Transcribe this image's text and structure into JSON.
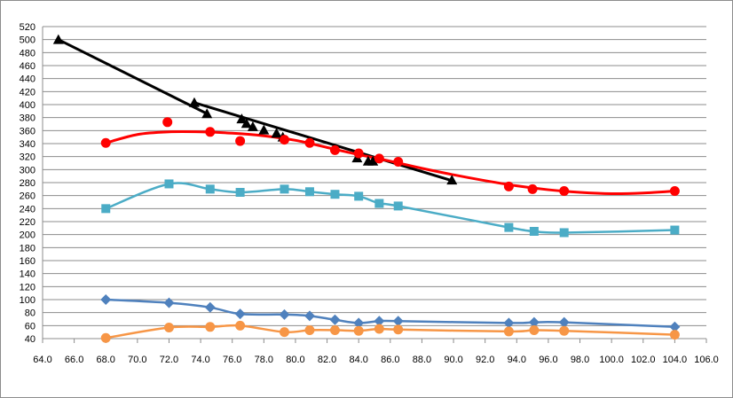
{
  "chart_data": {
    "type": "line",
    "title": "",
    "xlabel": "",
    "ylabel": "",
    "xlim": [
      64.0,
      106.0
    ],
    "ylim": [
      40,
      520
    ],
    "x_ticks": [
      "64.0",
      "66.0",
      "68.0",
      "70.0",
      "72.0",
      "74.0",
      "76.0",
      "78.0",
      "80.0",
      "82.0",
      "84.0",
      "86.0",
      "88.0",
      "90.0",
      "92.0",
      "94.0",
      "96.0",
      "98.0",
      "100.0",
      "102.0",
      "104.0",
      "106.0"
    ],
    "y_ticks": [
      "40",
      "60",
      "80",
      "100",
      "120",
      "140",
      "160",
      "180",
      "200",
      "220",
      "240",
      "260",
      "280",
      "300",
      "320",
      "340",
      "360",
      "380",
      "400",
      "420",
      "440",
      "460",
      "480",
      "500",
      "520"
    ],
    "grid": "horizontal",
    "legend": "none",
    "series": [
      {
        "color": "#000000",
        "marker": "triangle",
        "style": "points",
        "points": [
          [
            65.0,
            500
          ],
          [
            73.6,
            403
          ],
          [
            74.4,
            386
          ],
          [
            76.6,
            378
          ],
          [
            76.9,
            371
          ],
          [
            77.3,
            366
          ],
          [
            78.0,
            361
          ],
          [
            78.8,
            356
          ],
          [
            79.2,
            350
          ],
          [
            83.9,
            318
          ],
          [
            84.6,
            313
          ],
          [
            84.9,
            313
          ],
          [
            89.9,
            284
          ]
        ]
      },
      {
        "color": "#000000",
        "marker": "none",
        "style": "trend",
        "points": [
          [
            65.0,
            500
          ],
          [
            74.4,
            386
          ]
        ]
      },
      {
        "color": "#000000",
        "marker": "none",
        "style": "trend",
        "points": [
          [
            73.6,
            403
          ],
          [
            89.9,
            283
          ]
        ]
      },
      {
        "color": "#ff0000",
        "marker": "circle",
        "style": "points",
        "points": [
          [
            68.0,
            341
          ],
          [
            71.9,
            373
          ],
          [
            74.6,
            358
          ],
          [
            76.5,
            344
          ],
          [
            79.3,
            346
          ],
          [
            80.9,
            341
          ],
          [
            82.5,
            330
          ],
          [
            84.0,
            325
          ],
          [
            85.3,
            317
          ],
          [
            86.5,
            312
          ],
          [
            93.5,
            274
          ],
          [
            95.0,
            270
          ],
          [
            97.0,
            267
          ],
          [
            104.0,
            267
          ]
        ]
      },
      {
        "color": "#ff0000",
        "marker": "none",
        "style": "trend",
        "points": [
          [
            68.0,
            341
          ],
          [
            70.0,
            354
          ],
          [
            72.0,
            358
          ],
          [
            74.0,
            358
          ],
          [
            76.0,
            356
          ],
          [
            78.0,
            352
          ],
          [
            80.0,
            345
          ],
          [
            82.0,
            334
          ],
          [
            84.0,
            323
          ],
          [
            86.0,
            313
          ],
          [
            88.0,
            302
          ],
          [
            90.0,
            292
          ],
          [
            92.0,
            283
          ],
          [
            94.0,
            275
          ],
          [
            96.0,
            269
          ],
          [
            98.0,
            265
          ],
          [
            100.0,
            263
          ],
          [
            102.0,
            264
          ],
          [
            104.0,
            267
          ]
        ]
      },
      {
        "color": "#4bacc6",
        "marker": "square",
        "style": "smooth",
        "points": [
          [
            68.0,
            240
          ],
          [
            72.0,
            278
          ],
          [
            74.6,
            270
          ],
          [
            76.5,
            265
          ],
          [
            79.3,
            270
          ],
          [
            80.9,
            266
          ],
          [
            82.5,
            262
          ],
          [
            84.0,
            259
          ],
          [
            85.3,
            248
          ],
          [
            86.5,
            244
          ],
          [
            93.5,
            211
          ],
          [
            95.1,
            205
          ],
          [
            97.0,
            203
          ],
          [
            104.0,
            207
          ]
        ]
      },
      {
        "color": "#4f81bd",
        "marker": "diamond",
        "style": "smooth",
        "points": [
          [
            68.0,
            100
          ],
          [
            72.0,
            95
          ],
          [
            74.6,
            88
          ],
          [
            76.5,
            78
          ],
          [
            79.3,
            77
          ],
          [
            80.9,
            75
          ],
          [
            82.5,
            69
          ],
          [
            84.0,
            64
          ],
          [
            85.3,
            67
          ],
          [
            86.5,
            67
          ],
          [
            93.5,
            64
          ],
          [
            95.1,
            65
          ],
          [
            97.0,
            65
          ],
          [
            104.0,
            58
          ]
        ]
      },
      {
        "color": "#f79646",
        "marker": "circle",
        "style": "smooth",
        "points": [
          [
            68.0,
            41
          ],
          [
            72.0,
            57
          ],
          [
            74.6,
            58
          ],
          [
            76.5,
            60
          ],
          [
            79.3,
            50
          ],
          [
            80.9,
            53
          ],
          [
            82.5,
            53
          ],
          [
            84.0,
            52
          ],
          [
            85.3,
            55
          ],
          [
            86.5,
            54
          ],
          [
            93.5,
            51
          ],
          [
            95.1,
            53
          ],
          [
            97.0,
            52
          ],
          [
            104.0,
            46
          ]
        ]
      }
    ]
  }
}
